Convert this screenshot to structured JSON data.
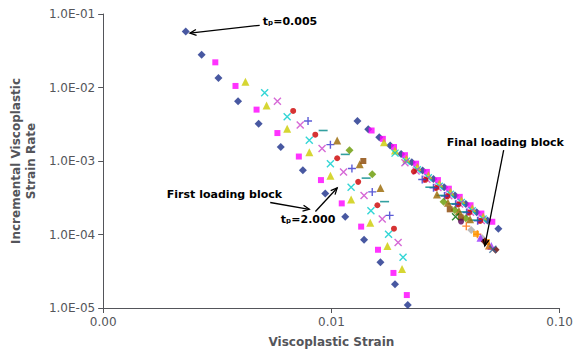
{
  "chart_data": {
    "type": "scatter",
    "xlabel": "Viscoplastic Strain",
    "ylabel": "Incremental Viscoplastic\nStrain Rate",
    "log": true,
    "grid": false,
    "xlim": [
      0.001,
      0.1
    ],
    "xticks": [
      {
        "value": 0.001,
        "label": "0.00"
      },
      {
        "value": 0.01,
        "label": "0.01"
      },
      {
        "value": 0.1,
        "label": "0.10"
      }
    ],
    "ylim": [
      1e-05,
      0.1
    ],
    "yticks": [
      {
        "value": 1e-05,
        "label": "1.0E-05"
      },
      {
        "value": 0.0001,
        "label": "1.0E-04"
      },
      {
        "value": 0.001,
        "label": "1.0E-03"
      },
      {
        "value": 0.01,
        "label": "1.0E-02"
      },
      {
        "value": 0.1,
        "label": "1.0E-01"
      }
    ],
    "series": [
      {
        "color": "#1a2e8a",
        "marker": "diamond",
        "x": [
          0.0023,
          0.0027,
          0.0032,
          0.0039,
          0.0048,
          0.006,
          0.0075,
          0.0094,
          0.0115,
          0.0139,
          0.0164,
          0.019,
          0.0216
        ],
        "values": [
          0.058,
          0.028,
          0.0135,
          0.0065,
          0.0032,
          0.00155,
          0.00075,
          0.00036,
          0.000175,
          8.5e-05,
          4.2e-05,
          2.1e-05,
          1.1e-05
        ]
      },
      {
        "color": "#ff00ff",
        "marker": "square",
        "x": [
          0.0031,
          0.0038,
          0.0047,
          0.0058,
          0.0072,
          0.009,
          0.0111,
          0.0135,
          0.016,
          0.0187,
          0.0214
        ],
        "values": [
          0.022,
          0.0105,
          0.005,
          0.0024,
          0.00115,
          0.00055,
          0.000265,
          0.000128,
          6.2e-05,
          3e-05,
          1.5e-05
        ]
      },
      {
        "color": "#cccc00",
        "marker": "triangle",
        "x": [
          0.0042,
          0.0052,
          0.0064,
          0.008,
          0.0099,
          0.0122,
          0.0148,
          0.0176,
          0.0204
        ],
        "values": [
          0.012,
          0.0057,
          0.00275,
          0.00132,
          0.00063,
          0.0003,
          0.000145,
          7e-05,
          3.4e-05
        ]
      },
      {
        "color": "#00cccc",
        "marker": "x",
        "x": [
          0.0051,
          0.0064,
          0.008,
          0.0099,
          0.0122,
          0.0149,
          0.0178,
          0.0206
        ],
        "values": [
          0.0085,
          0.004,
          0.00192,
          0.00092,
          0.00044,
          0.00021,
          0.000101,
          4.9e-05
        ]
      },
      {
        "color": "#cc44cc",
        "marker": "x",
        "x": [
          0.0058,
          0.0073,
          0.0091,
          0.0113,
          0.0139,
          0.0167,
          0.0196
        ],
        "values": [
          0.0065,
          0.0031,
          0.00148,
          0.00071,
          0.00034,
          0.000163,
          7.8e-05
        ]
      },
      {
        "color": "#cc0000",
        "marker": "circle",
        "x": [
          0.0068,
          0.0085,
          0.0106,
          0.0131,
          0.0159,
          0.0188
        ],
        "values": [
          0.0048,
          0.00228,
          0.00109,
          0.00052,
          0.00025,
          0.00012
        ]
      },
      {
        "color": "#3333cc",
        "marker": "plus",
        "x": [
          0.0079,
          0.0099,
          0.0123,
          0.0151,
          0.018
        ],
        "values": [
          0.0035,
          0.00167,
          0.00079,
          0.00038,
          0.000182
        ]
      },
      {
        "color": "#008888",
        "marker": "hline",
        "x": [
          0.0092,
          0.0115,
          0.0142,
          0.0171
        ],
        "values": [
          0.0026,
          0.00123,
          0.000585,
          0.00028
        ]
      },
      {
        "color": "#996600",
        "marker": "triangle",
        "x": [
          0.0106,
          0.0133,
          0.0164
        ],
        "values": [
          0.0019,
          0.0009,
          0.00043
        ]
      },
      {
        "color": "#669900",
        "marker": "diamond",
        "x": [
          0.012,
          0.0151
        ],
        "values": [
          0.0014,
          0.00066
        ]
      },
      {
        "color": "#884400",
        "marker": "square",
        "x": [
          0.0138
        ],
        "values": [
          0.001
        ]
      },
      {
        "color": "#1a2e8a",
        "marker": "diamond",
        "x": [
          0.013,
          0.0145,
          0.0162,
          0.0181,
          0.0202,
          0.0225,
          0.0251,
          0.028,
          0.0312,
          0.0348,
          0.0388,
          0.0433,
          0.0483,
          0.0539
        ],
        "values": [
          0.0035,
          0.0027,
          0.0021,
          0.00162,
          0.00125,
          0.00096,
          0.00074,
          0.00057,
          0.00044,
          0.00034,
          0.00026,
          0.0002,
          0.000155,
          0.00012
        ]
      },
      {
        "color": "#ff00ff",
        "marker": "square",
        "x": [
          0.015,
          0.0168,
          0.0188,
          0.021,
          0.0235,
          0.0262,
          0.0293,
          0.0327,
          0.0365,
          0.0407,
          0.0454,
          0.0507
        ],
        "values": [
          0.0026,
          0.002,
          0.00155,
          0.0012,
          0.00092,
          0.00071,
          0.00055,
          0.00042,
          0.000325,
          0.00025,
          0.000193,
          0.000149
        ]
      },
      {
        "color": "#cccc00",
        "marker": "triangle",
        "x": [
          0.017,
          0.019,
          0.0213,
          0.0238,
          0.0266,
          0.0297,
          0.0332,
          0.0371,
          0.0414,
          0.0462
        ],
        "values": [
          0.0018,
          0.00139,
          0.00107,
          0.00083,
          0.00064,
          0.000495,
          0.000382,
          0.000295,
          0.000228,
          0.000176
        ]
      },
      {
        "color": "#00cccc",
        "marker": "x",
        "x": [
          0.019,
          0.0213,
          0.0238,
          0.0266,
          0.0297,
          0.0332,
          0.0371,
          0.0414,
          0.0462
        ],
        "values": [
          0.00128,
          0.00099,
          0.00076,
          0.00059,
          0.000455,
          0.000352,
          0.000272,
          0.00021,
          0.000162
        ]
      },
      {
        "color": "#cc44cc",
        "marker": "x",
        "x": [
          0.021,
          0.0235,
          0.0262,
          0.0293,
          0.0327,
          0.0365,
          0.0407,
          0.0454
        ],
        "values": [
          0.00095,
          0.00073,
          0.000565,
          0.000436,
          0.000337,
          0.00026,
          0.000201,
          0.000155
        ]
      },
      {
        "color": "#cc0000",
        "marker": "circle",
        "x": [
          0.023,
          0.0258,
          0.0288,
          0.0322,
          0.036,
          0.0402,
          0.0449
        ],
        "values": [
          0.00072,
          0.000555,
          0.000429,
          0.000331,
          0.000256,
          0.000198,
          0.000153
        ]
      },
      {
        "color": "#3333cc",
        "marker": "plus",
        "x": [
          0.025,
          0.028,
          0.0313,
          0.035,
          0.0391,
          0.0437
        ],
        "values": [
          0.00056,
          0.000432,
          0.000334,
          0.000258,
          0.000199,
          0.000154
        ]
      },
      {
        "color": "#008888",
        "marker": "hline",
        "x": [
          0.027,
          0.0302,
          0.0338,
          0.0378,
          0.0422
        ],
        "values": [
          0.00044,
          0.00034,
          0.000262,
          0.000203,
          0.000157
        ]
      },
      {
        "color": "#996600",
        "marker": "triangle",
        "x": [
          0.029,
          0.0324,
          0.0362,
          0.0405
        ],
        "values": [
          0.00035,
          0.00027,
          0.000209,
          0.000161
        ]
      },
      {
        "color": "#669900",
        "marker": "diamond",
        "x": [
          0.031,
          0.0347,
          0.0388
        ],
        "values": [
          0.00028,
          0.000216,
          0.000167
        ]
      },
      {
        "color": "#884400",
        "marker": "square",
        "x": [
          0.033,
          0.0369
        ],
        "values": [
          0.00022,
          0.00017
        ]
      },
      {
        "color": "#006600",
        "marker": "x",
        "x": [
          0.035
        ],
        "values": [
          0.000175
        ]
      },
      {
        "color": "#550055",
        "marker": "circle",
        "x": [
          0.037
        ],
        "values": [
          0.00015
        ]
      },
      {
        "color": "#ff6600",
        "marker": "plus",
        "x": [
          0.039,
          0.0436
        ],
        "values": [
          0.00013,
          0.000101
        ]
      },
      {
        "color": "#aaaaaa",
        "marker": "diamond",
        "x": [
          0.041,
          0.0458
        ],
        "values": [
          0.000115,
          8.9e-05
        ]
      },
      {
        "color": "#ff9900",
        "marker": "square",
        "x": [
          0.043,
          0.048
        ],
        "values": [
          0.000102,
          7.9e-05
        ]
      },
      {
        "color": "#9933ff",
        "marker": "triangle",
        "x": [
          0.045,
          0.0502
        ],
        "values": [
          9e-05,
          7e-05
        ]
      },
      {
        "color": "#660000",
        "marker": "diamond",
        "x": [
          0.047,
          0.0524
        ],
        "values": [
          8e-05,
          6.2e-05
        ]
      },
      {
        "color": "#cc6600",
        "marker": "triangle",
        "x": [
          0.049
        ],
        "values": [
          7.1e-05
        ]
      },
      {
        "color": "#336699",
        "marker": "x",
        "x": [
          0.051
        ],
        "values": [
          6.3e-05
        ]
      }
    ],
    "annotations": [
      {
        "text": "tₚ=0.005",
        "x": 0.0024,
        "y": 0.055,
        "text_x": 0.005,
        "text_y": 0.078
      },
      {
        "text": "tₚ=2.000",
        "x": 0.0106,
        "y": 0.00043,
        "text_x": 0.006,
        "text_y": 0.00016
      },
      {
        "text": "First loading block",
        "x": 0.008,
        "y": 0.00022,
        "text_x": 0.0019,
        "text_y": 0.00035
      },
      {
        "text": "Final loading block",
        "x": 0.047,
        "y": 7e-05,
        "text_x": 0.032,
        "text_y": 0.0018
      }
    ]
  }
}
